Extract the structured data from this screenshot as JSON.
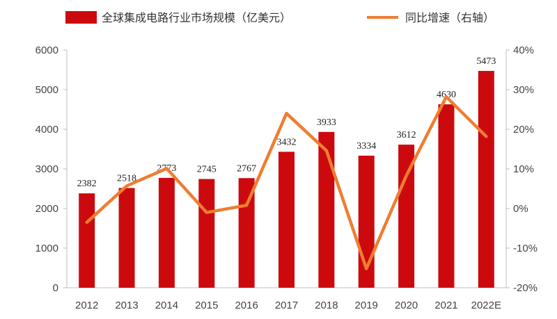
{
  "chart_data": {
    "type": "bar",
    "categories": [
      "2012",
      "2013",
      "2014",
      "2015",
      "2016",
      "2017",
      "2018",
      "2019",
      "2020",
      "2021",
      "2022E"
    ],
    "series": [
      {
        "name": "全球集成电路行业市场规模（亿美元）",
        "type": "bar",
        "axis": "left",
        "color": "#cc0a0e",
        "values": [
          2382,
          2518,
          2773,
          2745,
          2767,
          3432,
          3933,
          3334,
          3612,
          4630,
          5473
        ],
        "labels": [
          "2382",
          "2518",
          "2773",
          "2745",
          "2767",
          "3432",
          "3933",
          "3334",
          "3612",
          "4630",
          "5473"
        ]
      },
      {
        "name": "同比增速（右轴）",
        "type": "line",
        "axis": "right",
        "color": "#ef7d31",
        "values": [
          -3.5,
          5.7,
          10.1,
          -1.0,
          0.8,
          24.0,
          14.6,
          -15.2,
          8.3,
          28.2,
          18.2
        ]
      }
    ],
    "ylim_left": [
      0,
      6000
    ],
    "yticks_left": [
      "0",
      "1000",
      "2000",
      "3000",
      "4000",
      "5000",
      "6000"
    ],
    "ylim_right": [
      -20,
      40
    ],
    "yticks_right": [
      "-20%",
      "-10%",
      "0%",
      "10%",
      "20%",
      "30%",
      "40%"
    ],
    "legend_position": "top",
    "grid": false
  }
}
